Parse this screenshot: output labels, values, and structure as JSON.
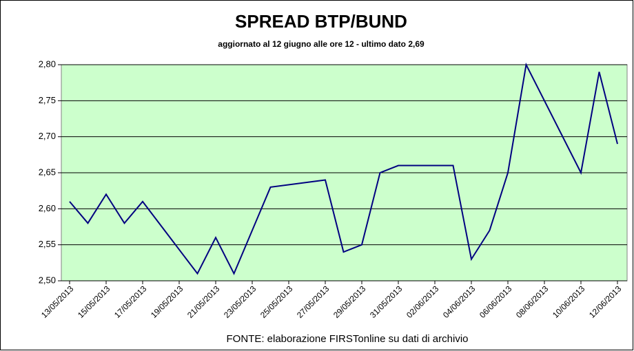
{
  "chart_data": {
    "type": "line",
    "title": "SPREAD  BTP/BUND",
    "subtitle": "aggiornato al 12 giugno alle ore 12 - ultimo dato 2,69",
    "source": "FONTE: elaborazione FIRSTonline su dati di archivio",
    "x": [
      "13/05/2013",
      "14/05/2013",
      "15/05/2013",
      "16/05/2013",
      "17/05/2013",
      "20/05/2013",
      "21/05/2013",
      "22/05/2013",
      "24/05/2013",
      "27/05/2013",
      "28/05/2013",
      "29/05/2013",
      "30/05/2013",
      "31/05/2013",
      "03/06/2013",
      "04/06/2013",
      "05/06/2013",
      "06/06/2013",
      "07/06/2013",
      "10/06/2013",
      "11/06/2013",
      "12/06/2013"
    ],
    "series": [
      {
        "color": "#000080",
        "values": [
          2.61,
          2.58,
          2.62,
          2.58,
          2.61,
          2.51,
          2.56,
          2.51,
          2.63,
          2.64,
          2.54,
          2.55,
          2.65,
          2.66,
          2.66,
          2.53,
          2.57,
          2.65,
          2.8,
          2.65,
          2.79,
          2.69
        ]
      }
    ],
    "xlim": [
      "13/05/2013",
      "12/06/2013"
    ],
    "xticks": [
      "13/05/2013",
      "15/05/2013",
      "17/05/2013",
      "19/05/2013",
      "21/05/2013",
      "23/05/2013",
      "25/05/2013",
      "27/05/2013",
      "29/05/2013",
      "31/05/2013",
      "02/06/2013",
      "04/06/2013",
      "06/06/2013",
      "08/06/2013",
      "10/06/2013",
      "12/06/2013"
    ],
    "ylim": [
      2.5,
      2.8
    ],
    "yticks": [
      {
        "value": 2.5,
        "label": "2,50"
      },
      {
        "value": 2.55,
        "label": "2,55"
      },
      {
        "value": 2.6,
        "label": "2,60"
      },
      {
        "value": 2.65,
        "label": "2,65"
      },
      {
        "value": 2.7,
        "label": "2,70"
      },
      {
        "value": 2.75,
        "label": "2,75"
      },
      {
        "value": 2.8,
        "label": "2,80"
      }
    ],
    "grid": true,
    "plot_background": "#ccffcc"
  }
}
